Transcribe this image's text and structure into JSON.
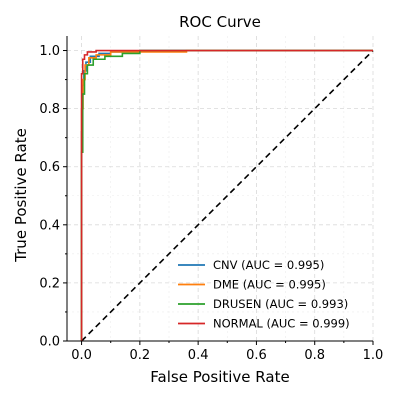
{
  "chart_data": {
    "type": "line",
    "title": "ROC Curve",
    "xlabel": "False Positive Rate",
    "ylabel": "True Positive Rate",
    "xlim": [
      -0.05,
      1.0
    ],
    "ylim": [
      0.0,
      1.05
    ],
    "xticks": [
      0.0,
      0.2,
      0.4,
      0.6,
      0.8,
      1.0
    ],
    "xtick_labels": [
      "0.0",
      "0.2",
      "0.4",
      "0.6",
      "0.8",
      "1.0"
    ],
    "yticks": [
      0.0,
      0.2,
      0.4,
      0.6,
      0.8,
      1.0
    ],
    "ytick_labels": [
      "0.0",
      "0.2",
      "0.4",
      "0.6",
      "0.8",
      "1.0"
    ],
    "grid": true,
    "legend_position": "lower-right",
    "diagonal": {
      "x": [
        0,
        1
      ],
      "y": [
        0,
        1
      ],
      "style": "dashed",
      "color": "#000000"
    },
    "series": [
      {
        "name": "CNV (AUC = 0.995)",
        "color": "#1f77b4",
        "x": [
          0.0,
          0.0,
          0.003,
          0.003,
          0.008,
          0.008,
          0.015,
          0.015,
          0.03,
          0.03,
          0.06,
          0.06,
          0.1,
          0.1,
          0.2,
          0.2,
          1.0
        ],
        "y": [
          0.0,
          0.72,
          0.72,
          0.88,
          0.88,
          0.93,
          0.93,
          0.96,
          0.96,
          0.98,
          0.98,
          0.99,
          0.99,
          0.995,
          0.995,
          1.0,
          1.0
        ]
      },
      {
        "name": "DME (AUC = 0.995)",
        "color": "#ff7f0e",
        "x": [
          0.0,
          0.0,
          0.005,
          0.005,
          0.012,
          0.012,
          0.025,
          0.025,
          0.05,
          0.05,
          0.1,
          0.1,
          0.36,
          0.36,
          1.0
        ],
        "y": [
          0.0,
          0.8,
          0.8,
          0.9,
          0.9,
          0.95,
          0.95,
          0.975,
          0.975,
          0.985,
          0.985,
          0.995,
          0.995,
          1.0,
          1.0
        ]
      },
      {
        "name": "DRUSEN (AUC = 0.993)",
        "color": "#2ca02c",
        "x": [
          0.0,
          0.0,
          0.004,
          0.004,
          0.01,
          0.01,
          0.02,
          0.02,
          0.04,
          0.04,
          0.08,
          0.08,
          0.14,
          0.14,
          0.2,
          0.2,
          1.0
        ],
        "y": [
          0.0,
          0.65,
          0.65,
          0.85,
          0.85,
          0.92,
          0.92,
          0.95,
          0.95,
          0.97,
          0.97,
          0.98,
          0.98,
          0.99,
          0.99,
          1.0,
          1.0
        ]
      },
      {
        "name": "NORMAL (AUC = 0.999)",
        "color": "#d62728",
        "x": [
          0.0,
          0.0,
          0.004,
          0.004,
          0.01,
          0.01,
          0.02,
          0.02,
          0.05,
          0.05,
          1.0
        ],
        "y": [
          0.0,
          0.92,
          0.92,
          0.97,
          0.97,
          0.985,
          0.985,
          0.995,
          0.995,
          1.0,
          1.0
        ]
      }
    ]
  }
}
